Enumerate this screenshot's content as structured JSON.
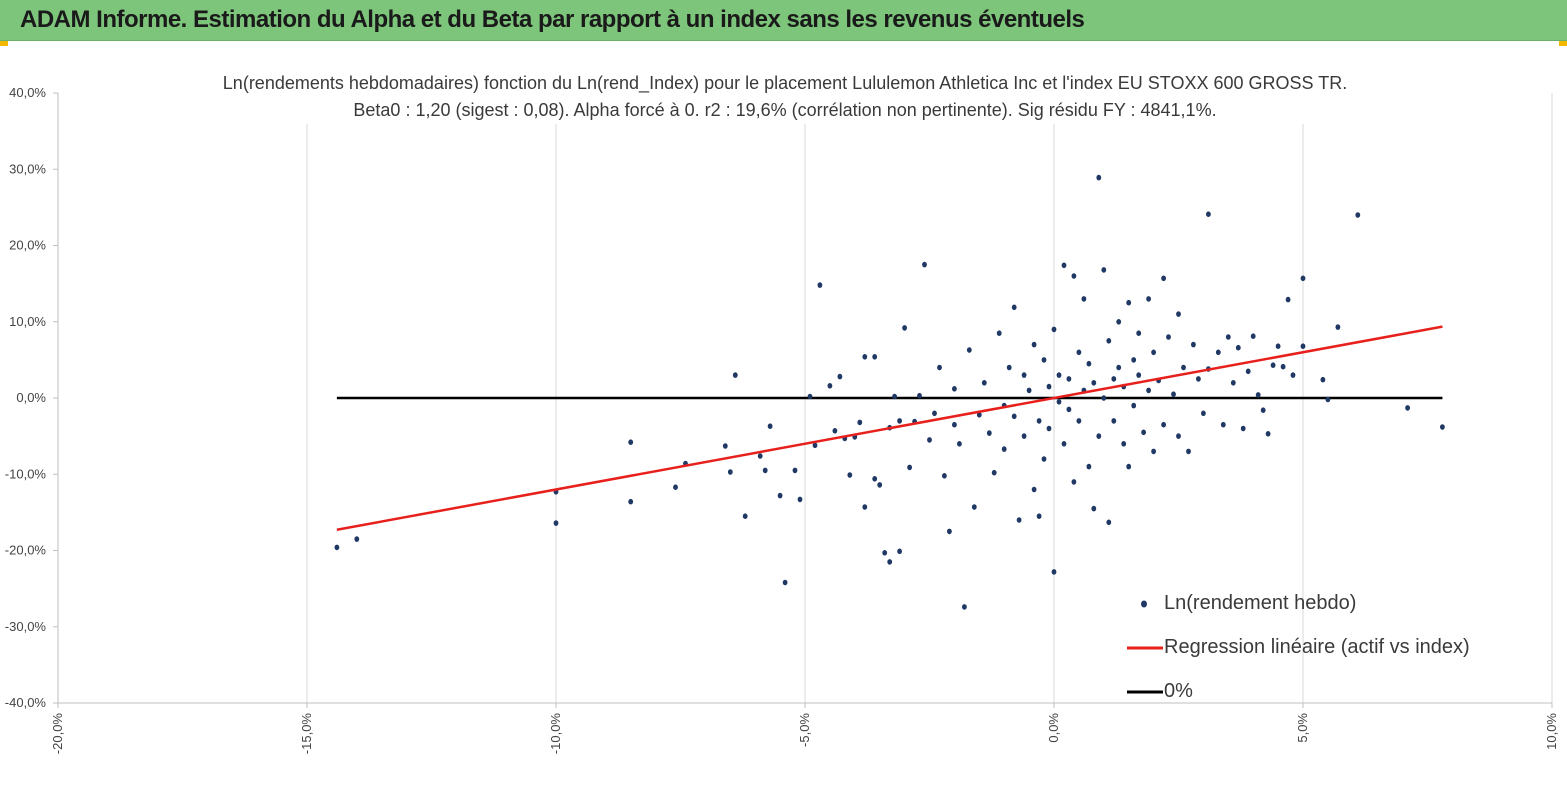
{
  "banner": {
    "title": "ADAM Informe. Estimation du Alpha et du Beta par rapport à un index sans les revenus éventuels"
  },
  "colors": {
    "banner_bg": "#7dc57b",
    "corner_accent": "#f2b800",
    "points": "#1f3864",
    "regression": "#e8201c",
    "zero_line": "#000000",
    "grid": "#d9d9d9"
  },
  "chart_data": {
    "type": "scatter",
    "title_lines": [
      "Ln(rendements hebdomadaires) fonction du Ln(rend_Index) pour le placement Lululemon Athletica Inc et l'index EU STOXX 600 GROSS TR.",
      "Beta0 : 1,20 (sigest : 0,08). Alpha forcé à 0. r2 : 19,6% (corrélation non pertinente). Sig résidu FY : 4841,1%."
    ],
    "xlim": [
      -0.2,
      0.1
    ],
    "ylim": [
      -0.4,
      0.4
    ],
    "x_ticks": [
      "-20,0%",
      "-15,0%",
      "-10,0%",
      "-5,0%",
      "0,0%",
      "5,0%",
      "10,0%"
    ],
    "x_tick_values": [
      -0.2,
      -0.15,
      -0.1,
      -0.05,
      0.0,
      0.05,
      0.1
    ],
    "y_ticks": [
      "40,0%",
      "30,0%",
      "20,0%",
      "10,0%",
      "0,0%",
      "-10,0%",
      "-20,0%",
      "-30,0%",
      "-40,0%"
    ],
    "y_tick_values": [
      0.4,
      0.3,
      0.2,
      0.1,
      0.0,
      -0.1,
      -0.2,
      -0.3,
      -0.4
    ],
    "grid": "vertical",
    "legend_position": "bottom-right",
    "series": [
      {
        "name": "Ln(rendement hebdo)",
        "kind": "scatter",
        "points": [
          [
            -0.144,
            -0.196
          ],
          [
            -0.14,
            -0.185
          ],
          [
            -0.1,
            -0.123
          ],
          [
            -0.1,
            -0.164
          ],
          [
            -0.085,
            -0.058
          ],
          [
            -0.085,
            -0.136
          ],
          [
            -0.076,
            -0.117
          ],
          [
            -0.074,
            -0.086
          ],
          [
            -0.066,
            -0.063
          ],
          [
            -0.065,
            -0.097
          ],
          [
            -0.064,
            0.03
          ],
          [
            -0.062,
            -0.155
          ],
          [
            -0.059,
            -0.076
          ],
          [
            -0.058,
            -0.095
          ],
          [
            -0.057,
            -0.037
          ],
          [
            -0.055,
            -0.128
          ],
          [
            -0.054,
            -0.242
          ],
          [
            -0.052,
            -0.095
          ],
          [
            -0.051,
            -0.133
          ],
          [
            -0.049,
            0.002
          ],
          [
            -0.048,
            -0.062
          ],
          [
            -0.047,
            0.148
          ],
          [
            -0.045,
            0.016
          ],
          [
            -0.044,
            -0.043
          ],
          [
            -0.043,
            0.028
          ],
          [
            -0.042,
            -0.053
          ],
          [
            -0.041,
            -0.101
          ],
          [
            -0.04,
            -0.051
          ],
          [
            -0.039,
            -0.032
          ],
          [
            -0.038,
            0.054
          ],
          [
            -0.038,
            -0.143
          ],
          [
            -0.036,
            0.054
          ],
          [
            -0.036,
            -0.106
          ],
          [
            -0.035,
            -0.114
          ],
          [
            -0.034,
            -0.203
          ],
          [
            -0.033,
            -0.215
          ],
          [
            -0.033,
            -0.039
          ],
          [
            -0.032,
            0.002
          ],
          [
            -0.031,
            -0.201
          ],
          [
            -0.031,
            -0.03
          ],
          [
            -0.03,
            0.092
          ],
          [
            -0.029,
            -0.091
          ],
          [
            -0.028,
            -0.031
          ],
          [
            -0.027,
            0.003
          ],
          [
            -0.026,
            0.175
          ],
          [
            -0.025,
            -0.055
          ],
          [
            -0.024,
            -0.02
          ],
          [
            -0.023,
            0.04
          ],
          [
            -0.022,
            -0.102
          ],
          [
            -0.021,
            -0.175
          ],
          [
            -0.02,
            -0.035
          ],
          [
            -0.02,
            0.012
          ],
          [
            -0.019,
            -0.06
          ],
          [
            -0.018,
            -0.274
          ],
          [
            -0.017,
            0.063
          ],
          [
            -0.016,
            -0.143
          ],
          [
            -0.015,
            -0.022
          ],
          [
            -0.014,
            0.02
          ],
          [
            -0.013,
            -0.046
          ],
          [
            -0.012,
            -0.098
          ],
          [
            -0.011,
            0.085
          ],
          [
            -0.01,
            -0.01
          ],
          [
            -0.01,
            -0.067
          ],
          [
            -0.009,
            0.04
          ],
          [
            -0.008,
            -0.024
          ],
          [
            -0.008,
            0.119
          ],
          [
            -0.007,
            -0.16
          ],
          [
            -0.006,
            0.03
          ],
          [
            -0.006,
            -0.05
          ],
          [
            -0.005,
            0.01
          ],
          [
            -0.004,
            -0.12
          ],
          [
            -0.004,
            0.07
          ],
          [
            -0.003,
            -0.03
          ],
          [
            -0.003,
            -0.155
          ],
          [
            -0.002,
            0.05
          ],
          [
            -0.002,
            -0.08
          ],
          [
            -0.001,
            0.015
          ],
          [
            -0.001,
            -0.04
          ],
          [
            0.0,
            0.09
          ],
          [
            0.0,
            -0.228
          ],
          [
            0.001,
            -0.005
          ],
          [
            0.001,
            0.03
          ],
          [
            0.002,
            -0.06
          ],
          [
            0.002,
            0.174
          ],
          [
            0.003,
            0.025
          ],
          [
            0.003,
            -0.015
          ],
          [
            0.004,
            0.16
          ],
          [
            0.004,
            -0.11
          ],
          [
            0.005,
            0.06
          ],
          [
            0.005,
            -0.03
          ],
          [
            0.006,
            0.13
          ],
          [
            0.006,
            0.01
          ],
          [
            0.007,
            -0.09
          ],
          [
            0.007,
            0.045
          ],
          [
            0.008,
            -0.145
          ],
          [
            0.008,
            0.02
          ],
          [
            0.009,
            0.289
          ],
          [
            0.009,
            -0.05
          ],
          [
            0.01,
            0.168
          ],
          [
            0.01,
            0.0
          ],
          [
            0.011,
            0.075
          ],
          [
            0.011,
            -0.163
          ],
          [
            0.012,
            0.025
          ],
          [
            0.012,
            -0.03
          ],
          [
            0.013,
            0.1
          ],
          [
            0.013,
            0.04
          ],
          [
            0.014,
            -0.06
          ],
          [
            0.014,
            0.015
          ],
          [
            0.015,
            0.125
          ],
          [
            0.015,
            -0.09
          ],
          [
            0.016,
            0.05
          ],
          [
            0.016,
            -0.01
          ],
          [
            0.017,
            0.085
          ],
          [
            0.017,
            0.03
          ],
          [
            0.018,
            -0.045
          ],
          [
            0.019,
            0.13
          ],
          [
            0.019,
            0.01
          ],
          [
            0.02,
            -0.07
          ],
          [
            0.02,
            0.06
          ],
          [
            0.021,
            0.023
          ],
          [
            0.022,
            0.157
          ],
          [
            0.022,
            -0.035
          ],
          [
            0.023,
            0.08
          ],
          [
            0.024,
            0.005
          ],
          [
            0.025,
            -0.05
          ],
          [
            0.025,
            0.11
          ],
          [
            0.026,
            0.04
          ],
          [
            0.027,
            -0.07
          ],
          [
            0.028,
            0.07
          ],
          [
            0.029,
            0.025
          ],
          [
            0.03,
            -0.02
          ],
          [
            0.031,
            0.038
          ],
          [
            0.031,
            0.241
          ],
          [
            0.033,
            0.06
          ],
          [
            0.034,
            -0.035
          ],
          [
            0.035,
            0.08
          ],
          [
            0.036,
            0.02
          ],
          [
            0.037,
            0.066
          ],
          [
            0.038,
            -0.04
          ],
          [
            0.039,
            0.035
          ],
          [
            0.04,
            0.081
          ],
          [
            0.041,
            0.004
          ],
          [
            0.042,
            -0.016
          ],
          [
            0.043,
            -0.047
          ],
          [
            0.044,
            0.043
          ],
          [
            0.045,
            0.068
          ],
          [
            0.046,
            0.041
          ],
          [
            0.047,
            0.129
          ],
          [
            0.048,
            0.03
          ],
          [
            0.05,
            0.157
          ],
          [
            0.05,
            0.068
          ],
          [
            0.054,
            0.024
          ],
          [
            0.055,
            -0.002
          ],
          [
            0.057,
            0.093
          ],
          [
            0.061,
            0.24
          ],
          [
            0.071,
            -0.013
          ],
          [
            0.078,
            -0.038
          ]
        ]
      },
      {
        "name": "Regression linéaire (actif vs index)",
        "kind": "line",
        "beta": 1.2,
        "x": [
          -0.144,
          0.078
        ]
      },
      {
        "name": "0%",
        "kind": "line",
        "y": 0.0,
        "x": [
          -0.144,
          0.078
        ]
      }
    ]
  },
  "legend": {
    "items": [
      {
        "label": "Ln(rendement hebdo)",
        "kind": "marker"
      },
      {
        "label": "Regression linéaire (actif vs index)",
        "kind": "red-line"
      },
      {
        "label": "0%",
        "kind": "black-line"
      }
    ]
  }
}
